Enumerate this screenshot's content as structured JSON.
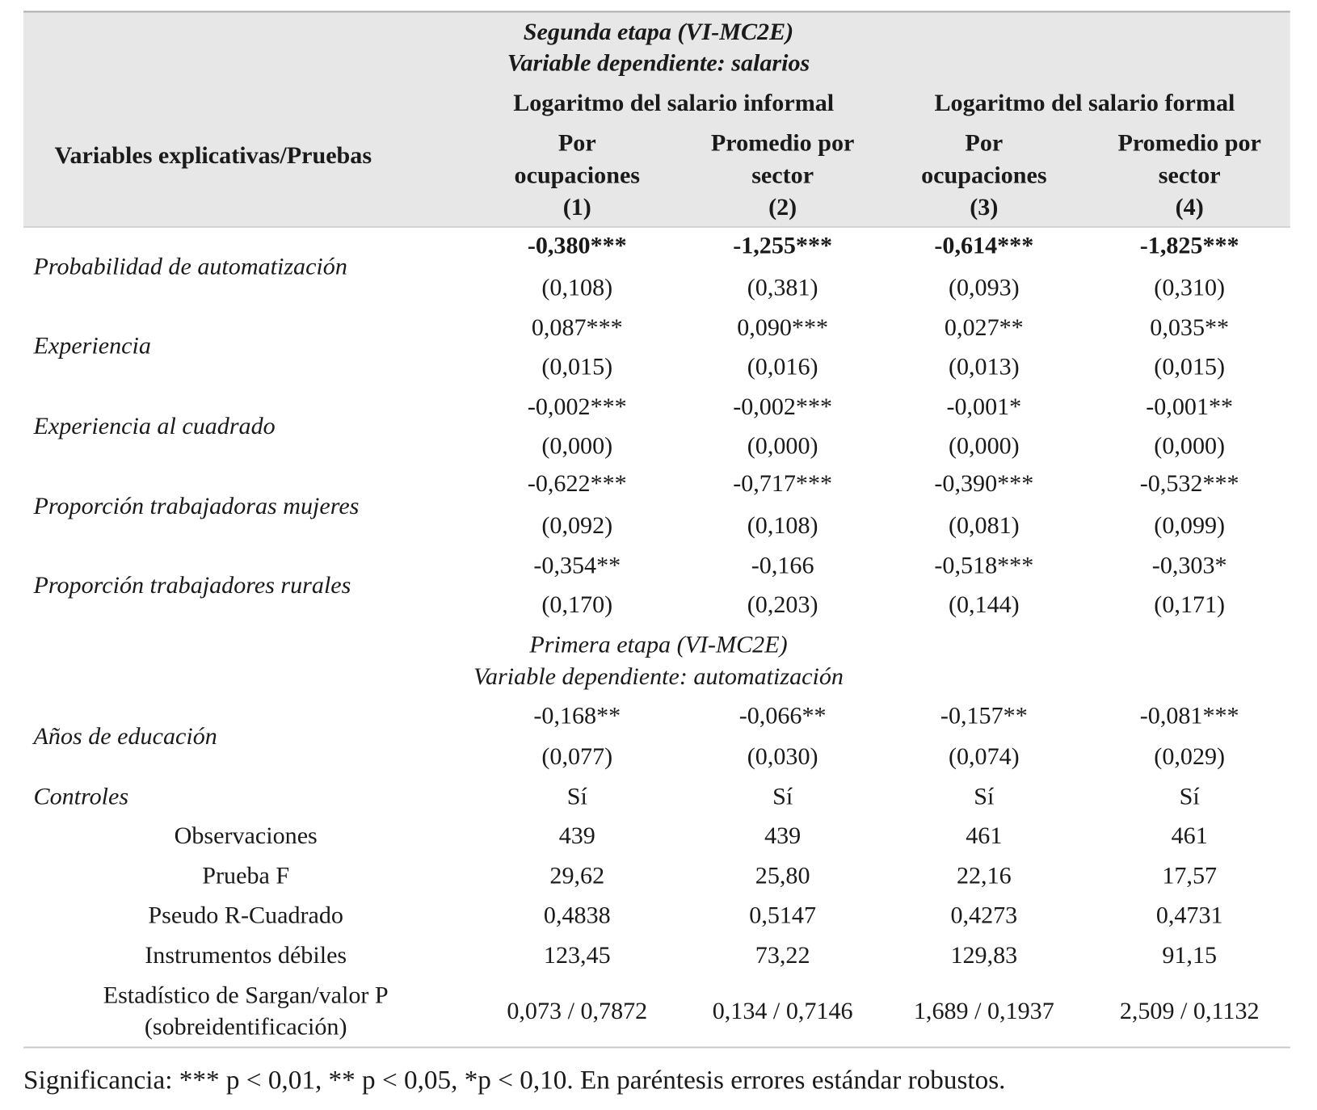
{
  "header": {
    "stub": "Variables explicativas/Pruebas",
    "stage_title": [
      "Segunda etapa (VI-MC2E)",
      "Variable dependiente: salarios"
    ],
    "groups": [
      "Logaritmo del salario informal",
      "Logaritmo del salario formal"
    ],
    "columns": [
      [
        "Por",
        "ocupaciones",
        "(1)"
      ],
      [
        "Promedio por",
        "sector",
        "(2)"
      ],
      [
        "Por",
        "ocupaciones",
        "(3)"
      ],
      [
        "Promedio por",
        "sector",
        "(4)"
      ]
    ]
  },
  "rows": [
    {
      "label": "Probabilidad de automatización",
      "values": [
        "-0,380***",
        "-1,255***",
        "-0,614***",
        "-1,825***"
      ],
      "errors": [
        "(0,108)",
        "(0,381)",
        "(0,093)",
        "(0,310)"
      ]
    },
    {
      "label": "Experiencia",
      "values": [
        "0,087***",
        "0,090***",
        "0,027**",
        "0,035**"
      ],
      "errors": [
        "(0,015)",
        "(0,016)",
        "(0,013)",
        "(0,015)"
      ]
    },
    {
      "label": "Experiencia al cuadrado",
      "values": [
        "-0,002***",
        "-0,002***",
        "-0,001*",
        "-0,001**"
      ],
      "errors": [
        "(0,000)",
        "(0,000)",
        "(0,000)",
        "(0,000)"
      ]
    },
    {
      "label": "Proporción trabajadoras mujeres",
      "values": [
        "-0,622***",
        "-0,717***",
        "-0,390***",
        "-0,532***"
      ],
      "errors": [
        "(0,092)",
        "(0,108)",
        "(0,081)",
        "(0,099)"
      ]
    },
    {
      "label": "Proporción trabajadores rurales",
      "values": [
        "-0,354**",
        "-0,166",
        "-0,518***",
        "-0,303*"
      ],
      "errors": [
        "(0,170)",
        "(0,203)",
        "(0,144)",
        "(0,171)"
      ]
    }
  ],
  "first_stage": {
    "title": [
      "Primera etapa (VI-MC2E)",
      "Variable dependiente: automatización"
    ],
    "rows": [
      {
        "label": "Años de educación",
        "values": [
          "-0,168**",
          "-0,066**",
          "-0,157**",
          "-0,081***"
        ],
        "errors": [
          "(0,077)",
          "(0,030)",
          "(0,074)",
          "(0,029)"
        ]
      }
    ]
  },
  "controls": {
    "label": "Controles",
    "values": [
      "Sí",
      "Sí",
      "Sí",
      "Sí"
    ]
  },
  "stats": [
    {
      "label": [
        "Observaciones"
      ],
      "values": [
        "439",
        "439",
        "461",
        "461"
      ]
    },
    {
      "label": [
        "Prueba F"
      ],
      "values": [
        "29,62",
        "25,80",
        "22,16",
        "17,57"
      ]
    },
    {
      "label": [
        "Pseudo R-Cuadrado"
      ],
      "values": [
        "0,4838",
        "0,5147",
        "0,4273",
        "0,4731"
      ]
    },
    {
      "label": [
        "Instrumentos débiles"
      ],
      "values": [
        "123,45",
        "73,22",
        "129,83",
        "91,15"
      ]
    },
    {
      "label": [
        "Estadístico de Sargan/valor P",
        "(sobreidentificación)"
      ],
      "values": [
        "0,073 / 0,7872",
        "0,134 / 0,7146",
        "1,689 / 0,1937",
        "2,509 / 0,1132"
      ]
    }
  ],
  "footnote": "Significancia: *** p < 0,01, ** p < 0,05, *p < 0,10. En paréntesis errores estándar robustos."
}
